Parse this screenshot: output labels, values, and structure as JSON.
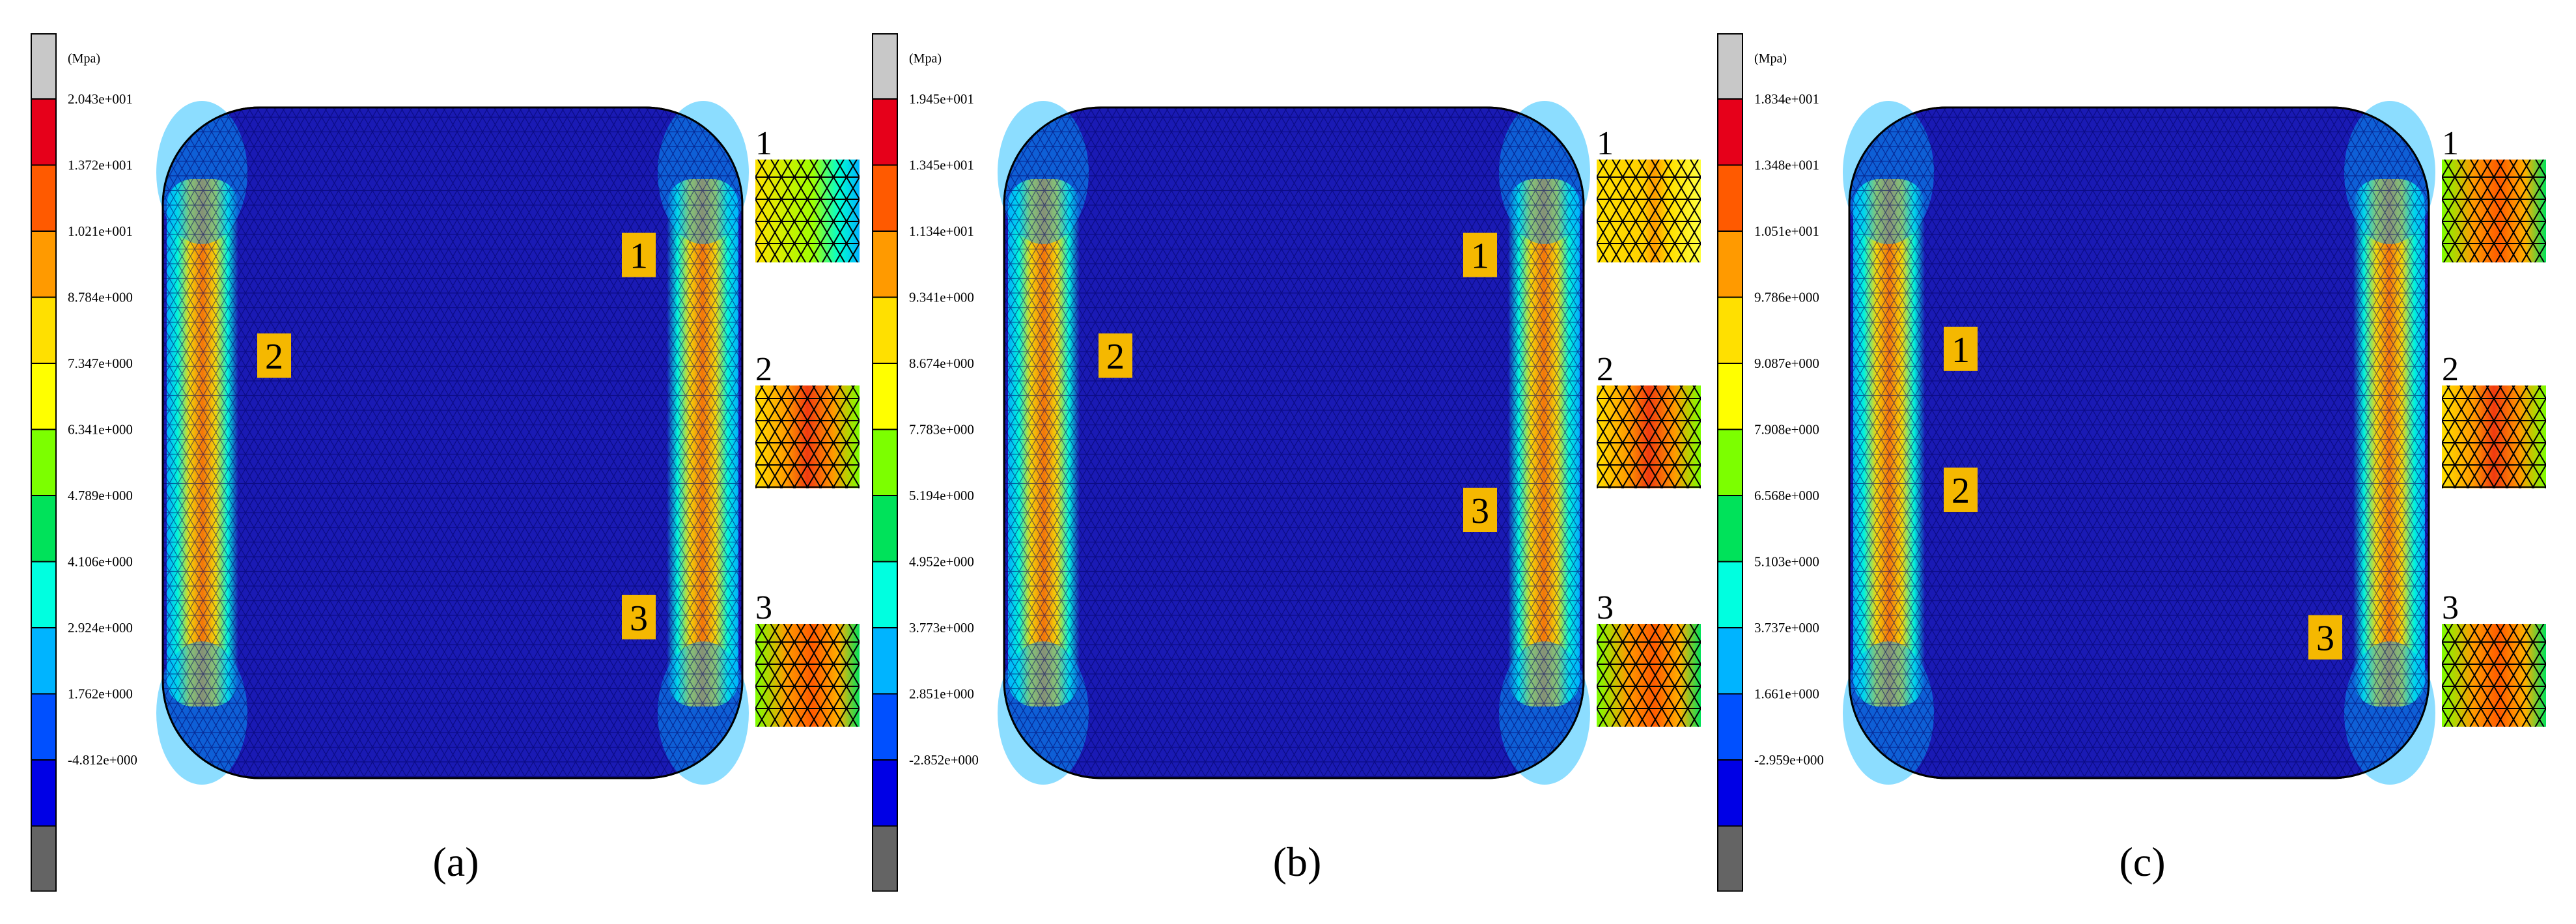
{
  "panels": [
    {
      "caption": "(a)",
      "unit": "(Mpa)",
      "legend": [
        "2.043e+001",
        "1.372e+001",
        "1.021e+001",
        "8.784e+000",
        "7.347e+000",
        "6.341e+000",
        "4.789e+000",
        "4.106e+000",
        "2.924e+000",
        "1.762e+000",
        "-4.812e+000"
      ],
      "markers": [
        {
          "label": "1",
          "side": "right",
          "level": 0.22
        },
        {
          "label": "2",
          "side": "left",
          "level": 0.37
        },
        {
          "label": "3",
          "side": "right",
          "level": 0.76
        }
      ],
      "insets": [
        {
          "label": "1",
          "style": "yellow-cyan"
        },
        {
          "label": "2",
          "style": "orange-red"
        },
        {
          "label": "3",
          "style": "orange-green"
        }
      ]
    },
    {
      "caption": "(b)",
      "unit": "(Mpa)",
      "legend": [
        "1.945e+001",
        "1.345e+001",
        "1.134e+001",
        "9.341e+000",
        "8.674e+000",
        "7.783e+000",
        "5.194e+000",
        "4.952e+000",
        "3.773e+000",
        "2.851e+000",
        "-2.852e+000"
      ],
      "markers": [
        {
          "label": "1",
          "side": "right",
          "level": 0.22
        },
        {
          "label": "2",
          "side": "left",
          "level": 0.37
        },
        {
          "label": "3",
          "side": "right",
          "level": 0.6
        }
      ],
      "insets": [
        {
          "label": "1",
          "style": "yellow"
        },
        {
          "label": "2",
          "style": "orange-red"
        },
        {
          "label": "3",
          "style": "orange-green"
        }
      ]
    },
    {
      "caption": "(c)",
      "unit": "(Mpa)",
      "legend": [
        "1.834e+001",
        "1.348e+001",
        "1.051e+001",
        "9.786e+000",
        "9.087e+000",
        "7.908e+000",
        "6.568e+000",
        "5.103e+000",
        "3.737e+000",
        "1.661e+000",
        "-2.959e+000"
      ],
      "markers": [
        {
          "label": "1",
          "side": "left",
          "level": 0.36
        },
        {
          "label": "2",
          "side": "left",
          "level": 0.57
        },
        {
          "label": "3",
          "side": "right",
          "level": 0.79
        }
      ],
      "insets": [
        {
          "label": "1",
          "style": "orange-green"
        },
        {
          "label": "2",
          "style": "orange-red"
        },
        {
          "label": "3",
          "style": "orange-green"
        }
      ]
    }
  ],
  "colors": {
    "mesh_blue": "#1a1ab4",
    "cap_gray": "#c8c8c8",
    "bottom_gray": "#646464",
    "marker_fill": "#f5b800",
    "scale": [
      "#e6001a",
      "#ff5a00",
      "#ff9a00",
      "#ffe000",
      "#ffff00",
      "#7cff00",
      "#00e25a",
      "#00ffe0",
      "#00b4ff",
      "#0050ff",
      "#0000e6"
    ]
  }
}
